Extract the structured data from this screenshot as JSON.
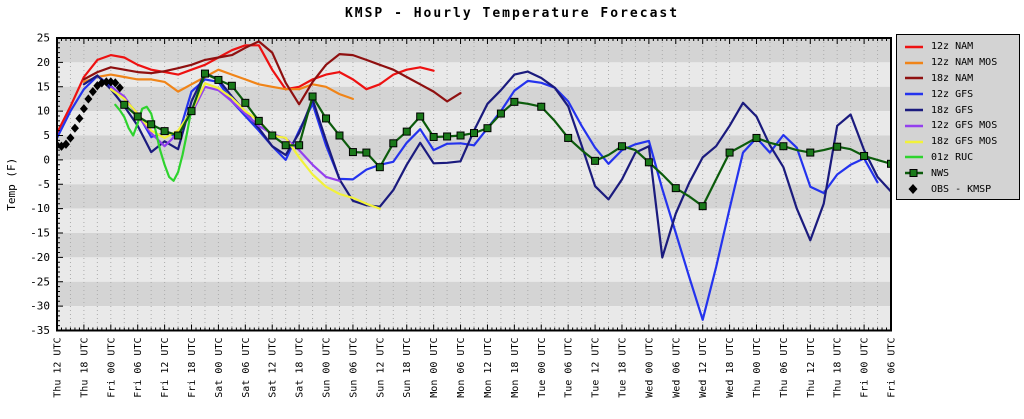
{
  "chart_data": {
    "type": "line",
    "title": "KMSP - Hourly Temperature Forecast",
    "xlabel": "",
    "ylabel": "Temp (F)",
    "ylim": [
      -35,
      25
    ],
    "ytick_step": 5,
    "y_minor_step": 1,
    "x_total_hours": 186,
    "x_tick_step_hours": 6,
    "x_minor_tick_hours": 1,
    "grid": "vertical-dotted-every-3h",
    "legend_position": "outside-top-right",
    "x_categories": [
      "Thu 12 UTC",
      "Thu 18 UTC",
      "Fri 00 UTC",
      "Fri 06 UTC",
      "Fri 12 UTC",
      "Fri 18 UTC",
      "Sat 00 UTC",
      "Sat 06 UTC",
      "Sat 12 UTC",
      "Sat 18 UTC",
      "Sun 00 UTC",
      "Sun 06 UTC",
      "Sun 12 UTC",
      "Sun 18 UTC",
      "Mon 00 UTC",
      "Mon 06 UTC",
      "Mon 12 UTC",
      "Mon 18 UTC",
      "Tue 00 UTC",
      "Tue 06 UTC",
      "Tue 12 UTC",
      "Tue 18 UTC",
      "Wed 00 UTC",
      "Wed 06 UTC",
      "Wed 12 UTC",
      "Wed 18 UTC",
      "Thu 00 UTC",
      "Thu 06 UTC",
      "Thu 12 UTC",
      "Thu 18 UTC",
      "Fri 00 UTC",
      "Fri 06 UTC"
    ],
    "style": {
      "band_dark": "#d4d4d4",
      "band_light": "#e9e9e9",
      "grid_color": "#ababab",
      "frame_color": "#000000",
      "background": "#ffffff",
      "legend_bg": "#d3d3d3"
    },
    "series": [
      {
        "name": "12z NAM",
        "color": "#ee1111",
        "marker": "none",
        "start_hour": 0,
        "step_hours": 3,
        "values": [
          5.5,
          11,
          17,
          20.5,
          21.5,
          21,
          19.5,
          18.5,
          18,
          17.5,
          18.5,
          19.5,
          21,
          22.5,
          23.5,
          23.5,
          18.5,
          14.5,
          15,
          16.5,
          17.5,
          18,
          16.5,
          14.5,
          15.5,
          17.5,
          18.5,
          19,
          18.3
        ]
      },
      {
        "name": "12z NAM MOS",
        "color": "#f08418",
        "marker": "none",
        "start_hour": 6,
        "step_hours": 3,
        "values": [
          16,
          17,
          17.5,
          17,
          16.5,
          16.5,
          16,
          14,
          15.5,
          17,
          18.5,
          17.5,
          16.5,
          15.5,
          15,
          14.5,
          14.5,
          15.5,
          15,
          13.5,
          12.5
        ]
      },
      {
        "name": "18z NAM",
        "color": "#8f1010",
        "marker": "none",
        "start_hour": 6,
        "step_hours": 3,
        "values": [
          16.5,
          18,
          19,
          18.5,
          18,
          17.8,
          18.2,
          18.8,
          19.5,
          20.5,
          21,
          21.5,
          23,
          24.3,
          22,
          15.8,
          11.4,
          16,
          19.5,
          21.7,
          21.5,
          20.5,
          19.5,
          18.5,
          17,
          15.5,
          14,
          12,
          13.7
        ]
      },
      {
        "name": "12z GFS",
        "color": "#2433ee",
        "marker": "none",
        "start_hour": 0,
        "step_hours": 3,
        "values": [
          4.5,
          10,
          14.5,
          17.2,
          15.2,
          12.5,
          9.5,
          4.7,
          5.5,
          4.8,
          14,
          16.5,
          16,
          12,
          9,
          6,
          2.8,
          0,
          6,
          11.5,
          3,
          -3.9,
          -4,
          -2,
          -1,
          -0.4,
          3.5,
          6.3,
          2,
          3.3,
          3.4,
          3,
          6.5,
          10,
          14.2,
          16.2,
          15.8,
          14.8,
          12,
          7,
          2.5,
          -0.8,
          2,
          3.2,
          3.9,
          -6,
          -15,
          -24,
          -32.8,
          -22,
          -10,
          1.5,
          4.5,
          1.5,
          5.1,
          2.5,
          -5.5,
          -6.8,
          -3,
          -1,
          0.3,
          -4.6
        ]
      },
      {
        "name": "18z GFS",
        "color": "#1b1b7e",
        "marker": "none",
        "start_hour": 6,
        "step_hours": 3,
        "values": [
          15.5,
          17.3,
          14.5,
          11,
          7,
          1.6,
          3.8,
          2.2,
          12,
          17.8,
          16.5,
          13,
          9.9,
          6.5,
          2.8,
          1,
          5.5,
          12.4,
          4,
          -4,
          -8.4,
          -9.3,
          -9.6,
          -6.2,
          -1,
          3.5,
          -0.7,
          -0.6,
          -0.3,
          6,
          11.5,
          14.3,
          17.5,
          18.1,
          16.8,
          14.8,
          11,
          3,
          -5.4,
          -8.1,
          -4,
          1.5,
          2.8,
          -20,
          -11,
          -4.7,
          0.5,
          2.8,
          7,
          11.7,
          8.9,
          3,
          -1.5,
          -10,
          -16.5,
          -9,
          7,
          9.3,
          2,
          -3.5,
          -6.5
        ]
      },
      {
        "name": "12z GFS MOS",
        "color": "#9440ee",
        "marker": "none",
        "start_hour": 12,
        "step_hours": 3,
        "values": [
          15,
          13,
          9,
          5.5,
          2.8,
          5.5,
          9.5,
          15,
          14.3,
          12,
          9.5,
          7,
          5.3,
          4.4,
          2,
          -1,
          -3.5,
          -4.3
        ]
      },
      {
        "name": "18z GFS MOS",
        "color": "#f2f23a",
        "marker": "none",
        "start_hour": 12,
        "step_hours": 3,
        "values": [
          14.5,
          12.5,
          9.5,
          6,
          4.5,
          6,
          10,
          15.7,
          14.7,
          12.7,
          10,
          8,
          5,
          4.5,
          0.5,
          -3,
          -5.5,
          -7,
          -7.8,
          -9,
          -10
        ]
      },
      {
        "name": "01z RUC",
        "color": "#2ed32e",
        "marker": "none",
        "start_hour": 13,
        "step_hours": 1,
        "values": [
          11.3,
          10.2,
          8.8,
          6.5,
          5,
          7.5,
          10.5,
          10.9,
          9.5,
          6,
          2,
          -1,
          -3.5,
          -4.3,
          -2.5,
          1,
          5.5,
          10.5
        ]
      },
      {
        "name": "NWS",
        "color": "#0c5c0c",
        "marker": "square",
        "start_hour": 15,
        "step_hours": 3,
        "values": [
          11.3,
          8.9,
          7.3,
          5.9,
          5,
          10,
          17.7,
          16.4,
          15.2,
          11.7,
          8,
          5,
          3,
          3,
          13,
          8.5,
          5,
          1.6,
          1.5,
          -1.5,
          3.4,
          5.8,
          8.9,
          4.7,
          4.8,
          5,
          5.5,
          6.5,
          9.5,
          11.9,
          11.5,
          10.9,
          8,
          4.5,
          2,
          -0.2,
          1,
          2.8,
          2,
          -0.5,
          -3,
          -5.8,
          -7.5,
          -9.5,
          -4,
          1.5,
          3,
          4.5,
          3.5,
          2.8,
          2,
          1.5,
          2,
          2.7,
          2.2,
          0.8,
          0,
          -0.8
        ]
      },
      {
        "name": "OBS - KMSP",
        "color": "#000000",
        "marker": "diamond",
        "line": false,
        "start_hour": 0,
        "step_hours": 1,
        "values": [
          3,
          2.8,
          3.2,
          4.5,
          6.5,
          8.5,
          10.5,
          12.5,
          14,
          15.2,
          15.8,
          16,
          16,
          15.8,
          14.8
        ]
      }
    ]
  }
}
